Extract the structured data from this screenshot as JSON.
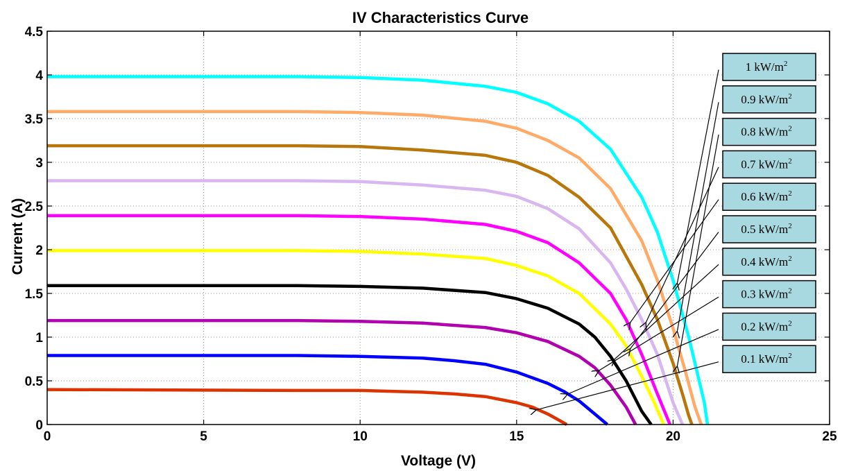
{
  "chart_data": {
    "type": "line",
    "title": "IV Characteristics Curve",
    "xlabel": "Voltage (V)",
    "ylabel": "Current (A)",
    "xlim": [
      0,
      25
    ],
    "ylim": [
      0,
      4.5
    ],
    "xticks": [
      "0",
      "5",
      "10",
      "15",
      "20",
      "25"
    ],
    "yticks": [
      "0",
      "0.5",
      "1",
      "1.5",
      "2",
      "2.5",
      "3",
      "3.5",
      "4",
      "4.5"
    ],
    "grid": "dotted",
    "legend_placement": "right, boxed labels with arrows",
    "series": [
      {
        "name": "1 kW/m",
        "sup": "2",
        "color": "#00ffff",
        "x": [
          0,
          8,
          10,
          12,
          14,
          15,
          16,
          17,
          18,
          19,
          19.5,
          20,
          20.5,
          21,
          21.1
        ],
        "y": [
          3.98,
          3.98,
          3.97,
          3.94,
          3.87,
          3.8,
          3.67,
          3.47,
          3.15,
          2.6,
          2.2,
          1.65,
          1.0,
          0.25,
          0
        ]
      },
      {
        "name": "0.9 kW/m",
        "sup": "2",
        "color": "#ffaa66",
        "x": [
          0,
          8,
          10,
          12,
          14,
          15,
          16,
          17,
          18,
          19,
          19.5,
          20,
          20.4,
          20.7,
          20.9
        ],
        "y": [
          3.58,
          3.58,
          3.57,
          3.54,
          3.47,
          3.39,
          3.25,
          3.05,
          2.7,
          2.1,
          1.65,
          1.1,
          0.6,
          0.2,
          0
        ]
      },
      {
        "name": "0.8 kW/m",
        "sup": "2",
        "color": "#b8770b",
        "x": [
          0,
          8,
          10,
          12,
          14,
          15,
          16,
          17,
          18,
          19,
          19.5,
          20,
          20.3,
          20.5,
          20.6
        ],
        "y": [
          3.19,
          3.19,
          3.18,
          3.14,
          3.08,
          3.0,
          2.85,
          2.6,
          2.25,
          1.6,
          1.2,
          0.7,
          0.35,
          0.1,
          0
        ]
      },
      {
        "name": "0.7 kW/m",
        "sup": "2",
        "color": "#d8b6f0",
        "x": [
          0,
          8,
          10,
          12,
          14,
          15,
          16,
          17,
          18,
          18.5,
          19,
          19.5,
          20,
          20.3
        ],
        "y": [
          2.79,
          2.79,
          2.78,
          2.74,
          2.68,
          2.61,
          2.47,
          2.24,
          1.85,
          1.55,
          1.2,
          0.8,
          0.25,
          0
        ]
      },
      {
        "name": "0.6 kW/m",
        "sup": "2",
        "color": "#ff00ff",
        "x": [
          0,
          8,
          10,
          12,
          14,
          15,
          16,
          17,
          18,
          18.5,
          19,
          19.5,
          19.9
        ],
        "y": [
          2.39,
          2.39,
          2.38,
          2.35,
          2.29,
          2.21,
          2.08,
          1.85,
          1.5,
          1.2,
          0.8,
          0.35,
          0
        ]
      },
      {
        "name": "0.5 kW/m",
        "sup": "2",
        "color": "#ffff00",
        "x": [
          0,
          8,
          10,
          12,
          14,
          15,
          16,
          17,
          18,
          18.5,
          19,
          19.4,
          19.7
        ],
        "y": [
          1.99,
          1.99,
          1.98,
          1.95,
          1.9,
          1.82,
          1.7,
          1.5,
          1.15,
          0.9,
          0.55,
          0.25,
          0
        ]
      },
      {
        "name": "0.4 kW/m",
        "sup": "2",
        "color": "#000000",
        "x": [
          0,
          8,
          10,
          12,
          14,
          15,
          16,
          17,
          17.5,
          18,
          18.5,
          19,
          19.3
        ],
        "y": [
          1.59,
          1.59,
          1.58,
          1.56,
          1.51,
          1.44,
          1.33,
          1.15,
          1.0,
          0.78,
          0.5,
          0.15,
          0
        ]
      },
      {
        "name": "0.3 kW/m",
        "sup": "2",
        "color": "#b000b0",
        "x": [
          0,
          8,
          10,
          12,
          14,
          15,
          16,
          17,
          17.5,
          18,
          18.5,
          18.8
        ],
        "y": [
          1.19,
          1.19,
          1.18,
          1.16,
          1.11,
          1.05,
          0.95,
          0.78,
          0.65,
          0.45,
          0.2,
          0
        ]
      },
      {
        "name": "0.2 kW/m",
        "sup": "2",
        "color": "#0000ff",
        "x": [
          0,
          8,
          10,
          12,
          13,
          14,
          15,
          16,
          16.5,
          17,
          17.5,
          17.9
        ],
        "y": [
          0.79,
          0.79,
          0.78,
          0.76,
          0.73,
          0.69,
          0.6,
          0.47,
          0.38,
          0.27,
          0.12,
          0
        ]
      },
      {
        "name": "0.1 kW/m",
        "sup": "2",
        "color": "#dd3300",
        "x": [
          0,
          8,
          10,
          12,
          13,
          14,
          15,
          15.5,
          16,
          16.3,
          16.6
        ],
        "y": [
          0.4,
          0.39,
          0.39,
          0.37,
          0.35,
          0.32,
          0.25,
          0.2,
          0.12,
          0.06,
          0
        ]
      }
    ],
    "legend_label_color": "#a8d8e0"
  }
}
